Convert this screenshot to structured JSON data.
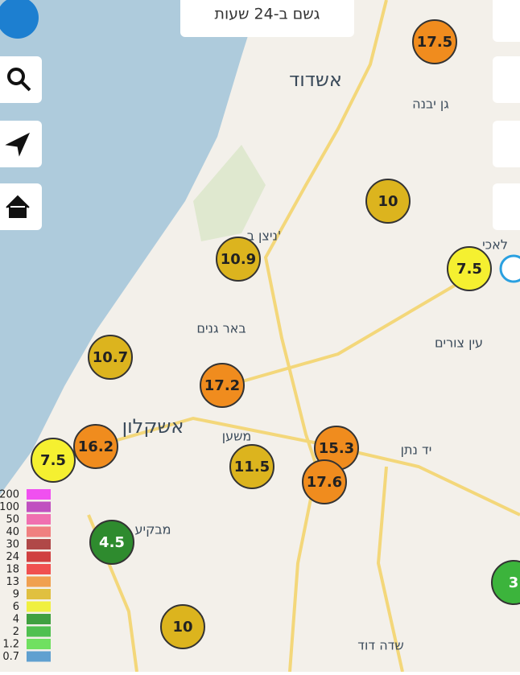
{
  "header": {
    "title": "גשם ב-24 שעות"
  },
  "places": [
    "אשדוד",
    "גן יבנה",
    "ניצן ב'",
    "באר גנים",
    "עין צורים",
    "אשקלון",
    "משען",
    "יד נתן",
    "מבקיע",
    "שדה דוד",
    "לאכי"
  ],
  "markers": [
    {
      "value": 17.5,
      "color": "#f08c1e"
    },
    {
      "value": 10,
      "color": "#dcb41e"
    },
    {
      "value": 10.9,
      "color": "#dcb41e"
    },
    {
      "value": 7.5,
      "color": "#f5f030"
    },
    {
      "value": 10.7,
      "color": "#dcb41e"
    },
    {
      "value": 17.2,
      "color": "#f08c1e"
    },
    {
      "value": 16.2,
      "color": "#f08c1e"
    },
    {
      "value": 7.5,
      "color": "#f5f030"
    },
    {
      "value": 15.3,
      "color": "#f08c1e"
    },
    {
      "value": 17.6,
      "color": "#f08c1e"
    },
    {
      "value": 11.5,
      "color": "#dcb41e"
    },
    {
      "value": 4.5,
      "color": "#2e8b2e"
    },
    {
      "value": 10,
      "color": "#dcb41e"
    },
    {
      "value": 3,
      "color": "#3cb43c"
    }
  ],
  "legend": [
    {
      "label": 200,
      "color": "#f050f0"
    },
    {
      "label": 100,
      "color": "#c050c0"
    },
    {
      "label": 50,
      "color": "#f070b0"
    },
    {
      "label": 40,
      "color": "#f08080"
    },
    {
      "label": 30,
      "color": "#b04848"
    },
    {
      "label": 24,
      "color": "#d04040"
    },
    {
      "label": 18,
      "color": "#f05050"
    },
    {
      "label": 13,
      "color": "#f0a050"
    },
    {
      "label": 9,
      "color": "#e0c040"
    },
    {
      "label": 6,
      "color": "#f0f040"
    },
    {
      "label": 4,
      "color": "#40a040"
    },
    {
      "label": 2,
      "color": "#50c050"
    },
    {
      "label": 1.2,
      "color": "#70e060"
    },
    {
      "label": 0.7,
      "color": "#60a0d0"
    }
  ]
}
